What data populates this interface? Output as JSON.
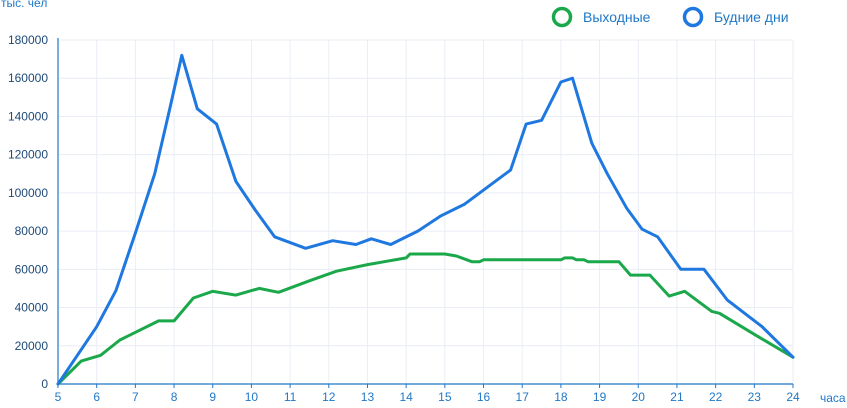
{
  "chart_data": {
    "type": "line",
    "ylabel": "тыс. чел",
    "xlabel": "часа",
    "ylim": [
      0,
      180000
    ],
    "xlim": [
      5,
      24
    ],
    "grid": true,
    "legend_position": "top-right",
    "y_ticks": [
      "0",
      "20000",
      "40000",
      "60000",
      "80000",
      "100000",
      "120000",
      "140000",
      "160000",
      "180000"
    ],
    "x_ticks": [
      "5",
      "6",
      "7",
      "8",
      "9",
      "10",
      "11",
      "12",
      "13",
      "14",
      "15",
      "16",
      "17",
      "18",
      "19",
      "20",
      "21",
      "22",
      "23",
      "24"
    ],
    "series": [
      {
        "name": "Выходные",
        "color": "#1aa84a",
        "x": [
          5,
          5.6,
          6.1,
          6.6,
          7.6,
          8.0,
          8.5,
          9.0,
          9.6,
          10.2,
          10.7,
          11.5,
          12.2,
          13.0,
          14.0,
          14.1,
          15.0,
          15.3,
          15.7,
          15.9,
          16.0,
          17.0,
          18.0,
          18.1,
          18.3,
          18.4,
          18.6,
          18.7,
          19.0,
          19.5,
          19.8,
          20.3,
          20.8,
          21.2,
          21.5,
          21.9,
          22.1,
          23.0,
          24.0
        ],
        "y": [
          0,
          12000,
          15000,
          23000,
          33000,
          33000,
          45000,
          48500,
          46500,
          50000,
          48000,
          54000,
          59000,
          62500,
          66000,
          68000,
          68000,
          67000,
          64000,
          64000,
          65000,
          65000,
          65000,
          66000,
          66000,
          65000,
          65000,
          64000,
          64000,
          64000,
          57000,
          57000,
          46000,
          48500,
          44000,
          38000,
          37000,
          26000,
          14000
        ]
      },
      {
        "name": "Будние дни",
        "color": "#1f78e0",
        "x": [
          5,
          6.0,
          6.5,
          7.0,
          7.5,
          7.9,
          8.2,
          8.6,
          9.1,
          9.6,
          10.1,
          10.6,
          11.4,
          12.1,
          12.7,
          13.1,
          13.6,
          14.3,
          14.9,
          15.5,
          16.1,
          16.7,
          17.1,
          17.5,
          18.0,
          18.3,
          18.8,
          19.2,
          19.7,
          20.1,
          20.5,
          21.1,
          21.7,
          22.3,
          23.2,
          24.0
        ],
        "y": [
          0,
          30000,
          49000,
          79000,
          110000,
          145000,
          172000,
          144000,
          136000,
          106000,
          91000,
          77000,
          71000,
          75000,
          73000,
          76000,
          73000,
          80000,
          88000,
          94000,
          103000,
          112000,
          136000,
          138000,
          158000,
          160000,
          126000,
          110000,
          92000,
          81000,
          77000,
          60000,
          60000,
          44000,
          30000,
          14000
        ]
      }
    ]
  },
  "legend": {
    "items": [
      {
        "label": "Выходные",
        "color": "#1aa84a"
      },
      {
        "label": "Будние дни",
        "color": "#1f78e0"
      }
    ]
  },
  "colors": {
    "grid": "#e9eef5",
    "axis": "#1f78c8",
    "y_tick_text": "#1f4a78"
  }
}
